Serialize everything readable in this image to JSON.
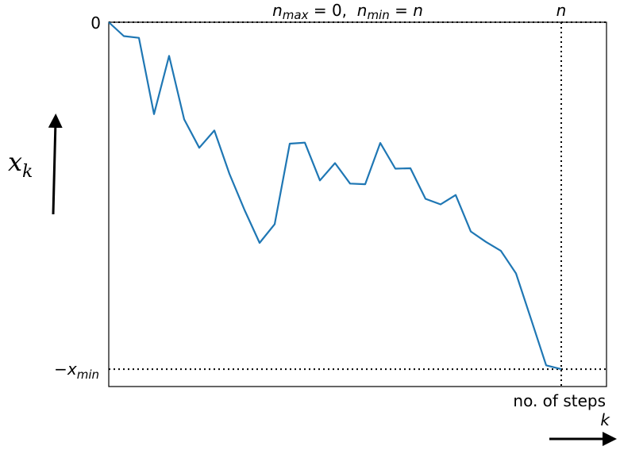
{
  "chart_data": {
    "type": "line",
    "title": "n_max = 0,  n_min = n",
    "title_parts": {
      "n1": "n",
      "sub1": "max",
      "eq1": " = 0,  ",
      "n2": "n",
      "sub2": "min",
      "eq2": " = ",
      "n3": "n"
    },
    "y_tick_top": "0",
    "y_tick_bottom": {
      "sign": "−",
      "var": "x",
      "sub": "min"
    },
    "x_marker_label": "n",
    "ylabel": {
      "var": "x",
      "sub": "k"
    },
    "xlabel": "no. of steps",
    "xlabel_var": "k",
    "grid": false,
    "xlim": [
      0,
      33
    ],
    "ylim": [
      -1.05,
      0
    ],
    "x_marker": 30,
    "y_marker": -1.0,
    "series": [
      {
        "color": "#1f77b4",
        "x": [
          0,
          1,
          2,
          3,
          4,
          5,
          6,
          7,
          8,
          9,
          10,
          11,
          12,
          13,
          14,
          15,
          16,
          17,
          18,
          19,
          20,
          21,
          22,
          23,
          24,
          25,
          26,
          27,
          28,
          29,
          30
        ],
        "values": [
          0,
          -0.04,
          -0.045,
          -0.265,
          -0.097,
          -0.28,
          -0.362,
          -0.312,
          -0.437,
          -0.541,
          -0.636,
          -0.582,
          -0.35,
          -0.347,
          -0.456,
          -0.406,
          -0.465,
          -0.467,
          -0.348,
          -0.422,
          -0.421,
          -0.509,
          -0.525,
          -0.498,
          -0.603,
          -0.633,
          -0.659,
          -0.724,
          -0.856,
          -0.989,
          -1.0
        ]
      }
    ]
  }
}
